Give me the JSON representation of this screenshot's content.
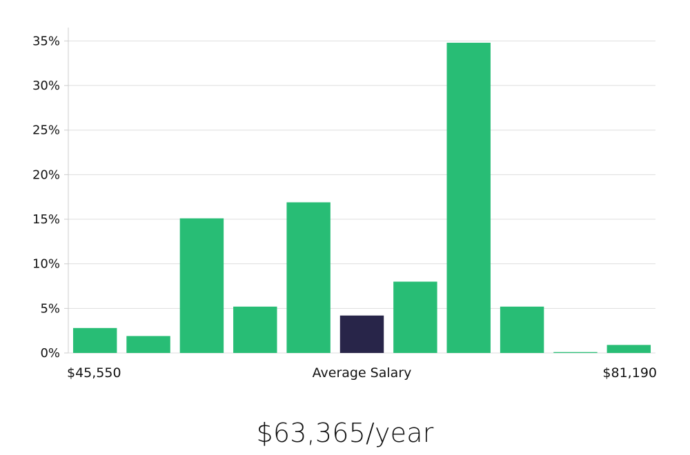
{
  "salary_display": "$63,365/year",
  "chart_data": {
    "type": "bar",
    "categories": [
      "1",
      "2",
      "3",
      "4",
      "5",
      "6",
      "7",
      "8",
      "9",
      "10",
      "11"
    ],
    "values": [
      2.8,
      1.9,
      15.1,
      5.2,
      16.9,
      4.2,
      8.0,
      34.8,
      5.2,
      0.1,
      0.9
    ],
    "highlight_index": 5,
    "ylim": [
      0,
      36.5
    ],
    "yticks": [
      0,
      5,
      10,
      15,
      20,
      25,
      30,
      35
    ],
    "ytick_labels": [
      "0%",
      "5%",
      "10%",
      "15%",
      "20%",
      "25%",
      "30%",
      "35%"
    ],
    "xlabel_left": "$45,550",
    "xlabel_center": "Average Salary",
    "xlabel_right": "$81,190",
    "grid": true,
    "colors": {
      "bar": "#28bd75",
      "highlight": "#282549",
      "grid": "#dddddd",
      "axis": "#cccccc",
      "text": "#111111"
    }
  }
}
